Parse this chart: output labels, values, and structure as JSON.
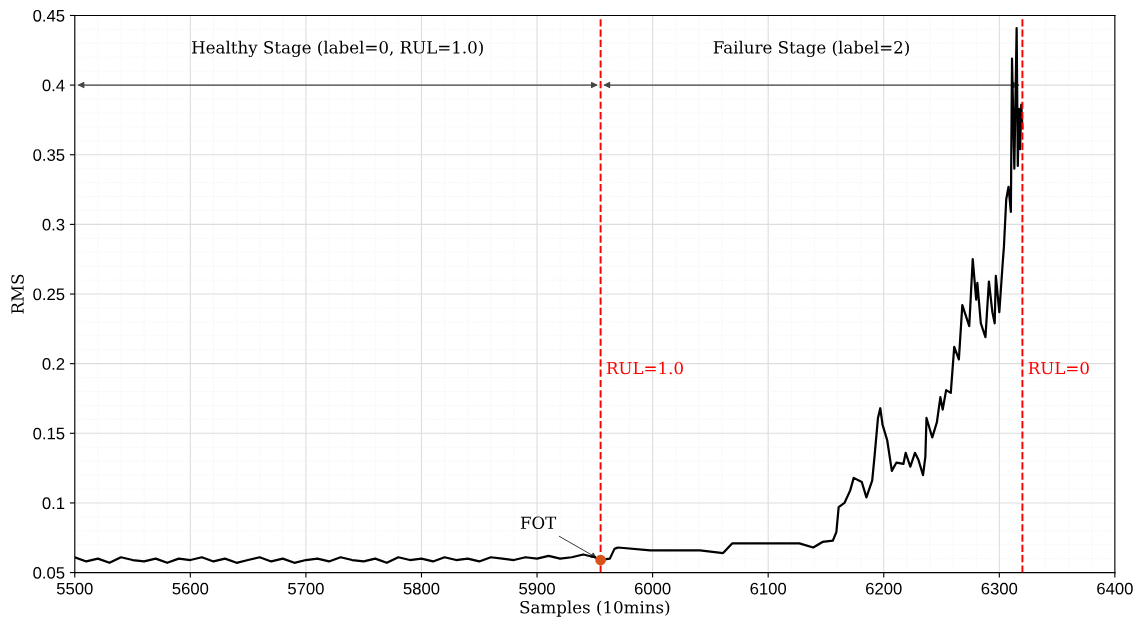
{
  "chart_data": {
    "type": "line",
    "xlabel": "Samples (10mins)",
    "ylabel": "RMS",
    "xlim": [
      5500,
      6400
    ],
    "ylim": [
      0.05,
      0.45
    ],
    "xticks": [
      5500,
      5600,
      5700,
      5800,
      5900,
      6000,
      6100,
      6200,
      6300,
      6400
    ],
    "yticks": [
      0.05,
      0.1,
      0.15,
      0.2,
      0.25,
      0.3,
      0.35,
      0.4,
      0.45
    ],
    "grid": true,
    "legend": false,
    "series": [
      {
        "color": "#000000",
        "line_style": "solid",
        "marker": "none",
        "x": [
          5500,
          5510,
          5520,
          5530,
          5540,
          5550,
          5560,
          5570,
          5580,
          5590,
          5600,
          5610,
          5620,
          5630,
          5640,
          5650,
          5660,
          5670,
          5680,
          5690,
          5700,
          5710,
          5720,
          5730,
          5740,
          5750,
          5760,
          5770,
          5780,
          5790,
          5800,
          5810,
          5820,
          5830,
          5840,
          5850,
          5860,
          5870,
          5880,
          5890,
          5900,
          5910,
          5920,
          5930,
          5940,
          5950,
          5954,
          5963,
          5967,
          5970,
          5998,
          6041,
          6061,
          6069,
          6099,
          6127,
          6139,
          6147,
          6156,
          6159,
          6161,
          6166,
          6171,
          6174,
          6181,
          6185,
          6190,
          6192,
          6195,
          6197,
          6199,
          6203,
          6207,
          6211,
          6217,
          6219,
          6223,
          6227,
          6230,
          6234,
          6236,
          6237,
          6242,
          6246,
          6249,
          6251,
          6254,
          6258,
          6261,
          6265,
          6268,
          6274,
          6277,
          6280,
          6281,
          6284,
          6288,
          6291,
          6294,
          6296,
          6297,
          6300,
          6303,
          6304,
          6306,
          6308,
          6310,
          6311,
          6313,
          6315,
          6316,
          6317,
          6318,
          6319,
          6320
        ],
        "values": [
          0.061,
          0.058,
          0.06,
          0.057,
          0.061,
          0.059,
          0.058,
          0.06,
          0.057,
          0.06,
          0.059,
          0.061,
          0.058,
          0.06,
          0.057,
          0.059,
          0.061,
          0.058,
          0.06,
          0.057,
          0.059,
          0.06,
          0.058,
          0.061,
          0.059,
          0.058,
          0.06,
          0.057,
          0.061,
          0.059,
          0.06,
          0.058,
          0.061,
          0.059,
          0.06,
          0.058,
          0.061,
          0.06,
          0.059,
          0.061,
          0.06,
          0.062,
          0.06,
          0.061,
          0.063,
          0.061,
          0.059,
          0.06,
          0.067,
          0.068,
          0.066,
          0.066,
          0.064,
          0.071,
          0.071,
          0.071,
          0.068,
          0.072,
          0.073,
          0.079,
          0.097,
          0.1,
          0.109,
          0.118,
          0.115,
          0.104,
          0.116,
          0.133,
          0.161,
          0.168,
          0.156,
          0.145,
          0.123,
          0.129,
          0.128,
          0.136,
          0.126,
          0.136,
          0.131,
          0.12,
          0.133,
          0.161,
          0.147,
          0.158,
          0.176,
          0.167,
          0.181,
          0.179,
          0.212,
          0.203,
          0.242,
          0.227,
          0.275,
          0.246,
          0.258,
          0.229,
          0.219,
          0.259,
          0.237,
          0.229,
          0.263,
          0.237,
          0.273,
          0.284,
          0.318,
          0.327,
          0.309,
          0.419,
          0.34,
          0.441,
          0.342,
          0.383,
          0.354,
          0.386,
          0.369
        ]
      },
      {
        "type": "scatter",
        "color": "#d95319",
        "marker": "circle",
        "x": [
          5955
        ],
        "values": [
          0.059
        ]
      }
    ],
    "ref_lines": [
      {
        "axis": "x",
        "value": 5955,
        "color": "#ff0000",
        "line_style": "dashed"
      },
      {
        "axis": "x",
        "value": 6320,
        "color": "#ff0000",
        "line_style": "dashed"
      }
    ],
    "annotations": [
      "Healthy Stage (label=0, RUL=1.0)",
      "Failure Stage (label=2)",
      "RUL=1.0",
      "RUL=0",
      {
        "text": "FOT",
        "x": 5955,
        "y": 0.059
      }
    ]
  }
}
